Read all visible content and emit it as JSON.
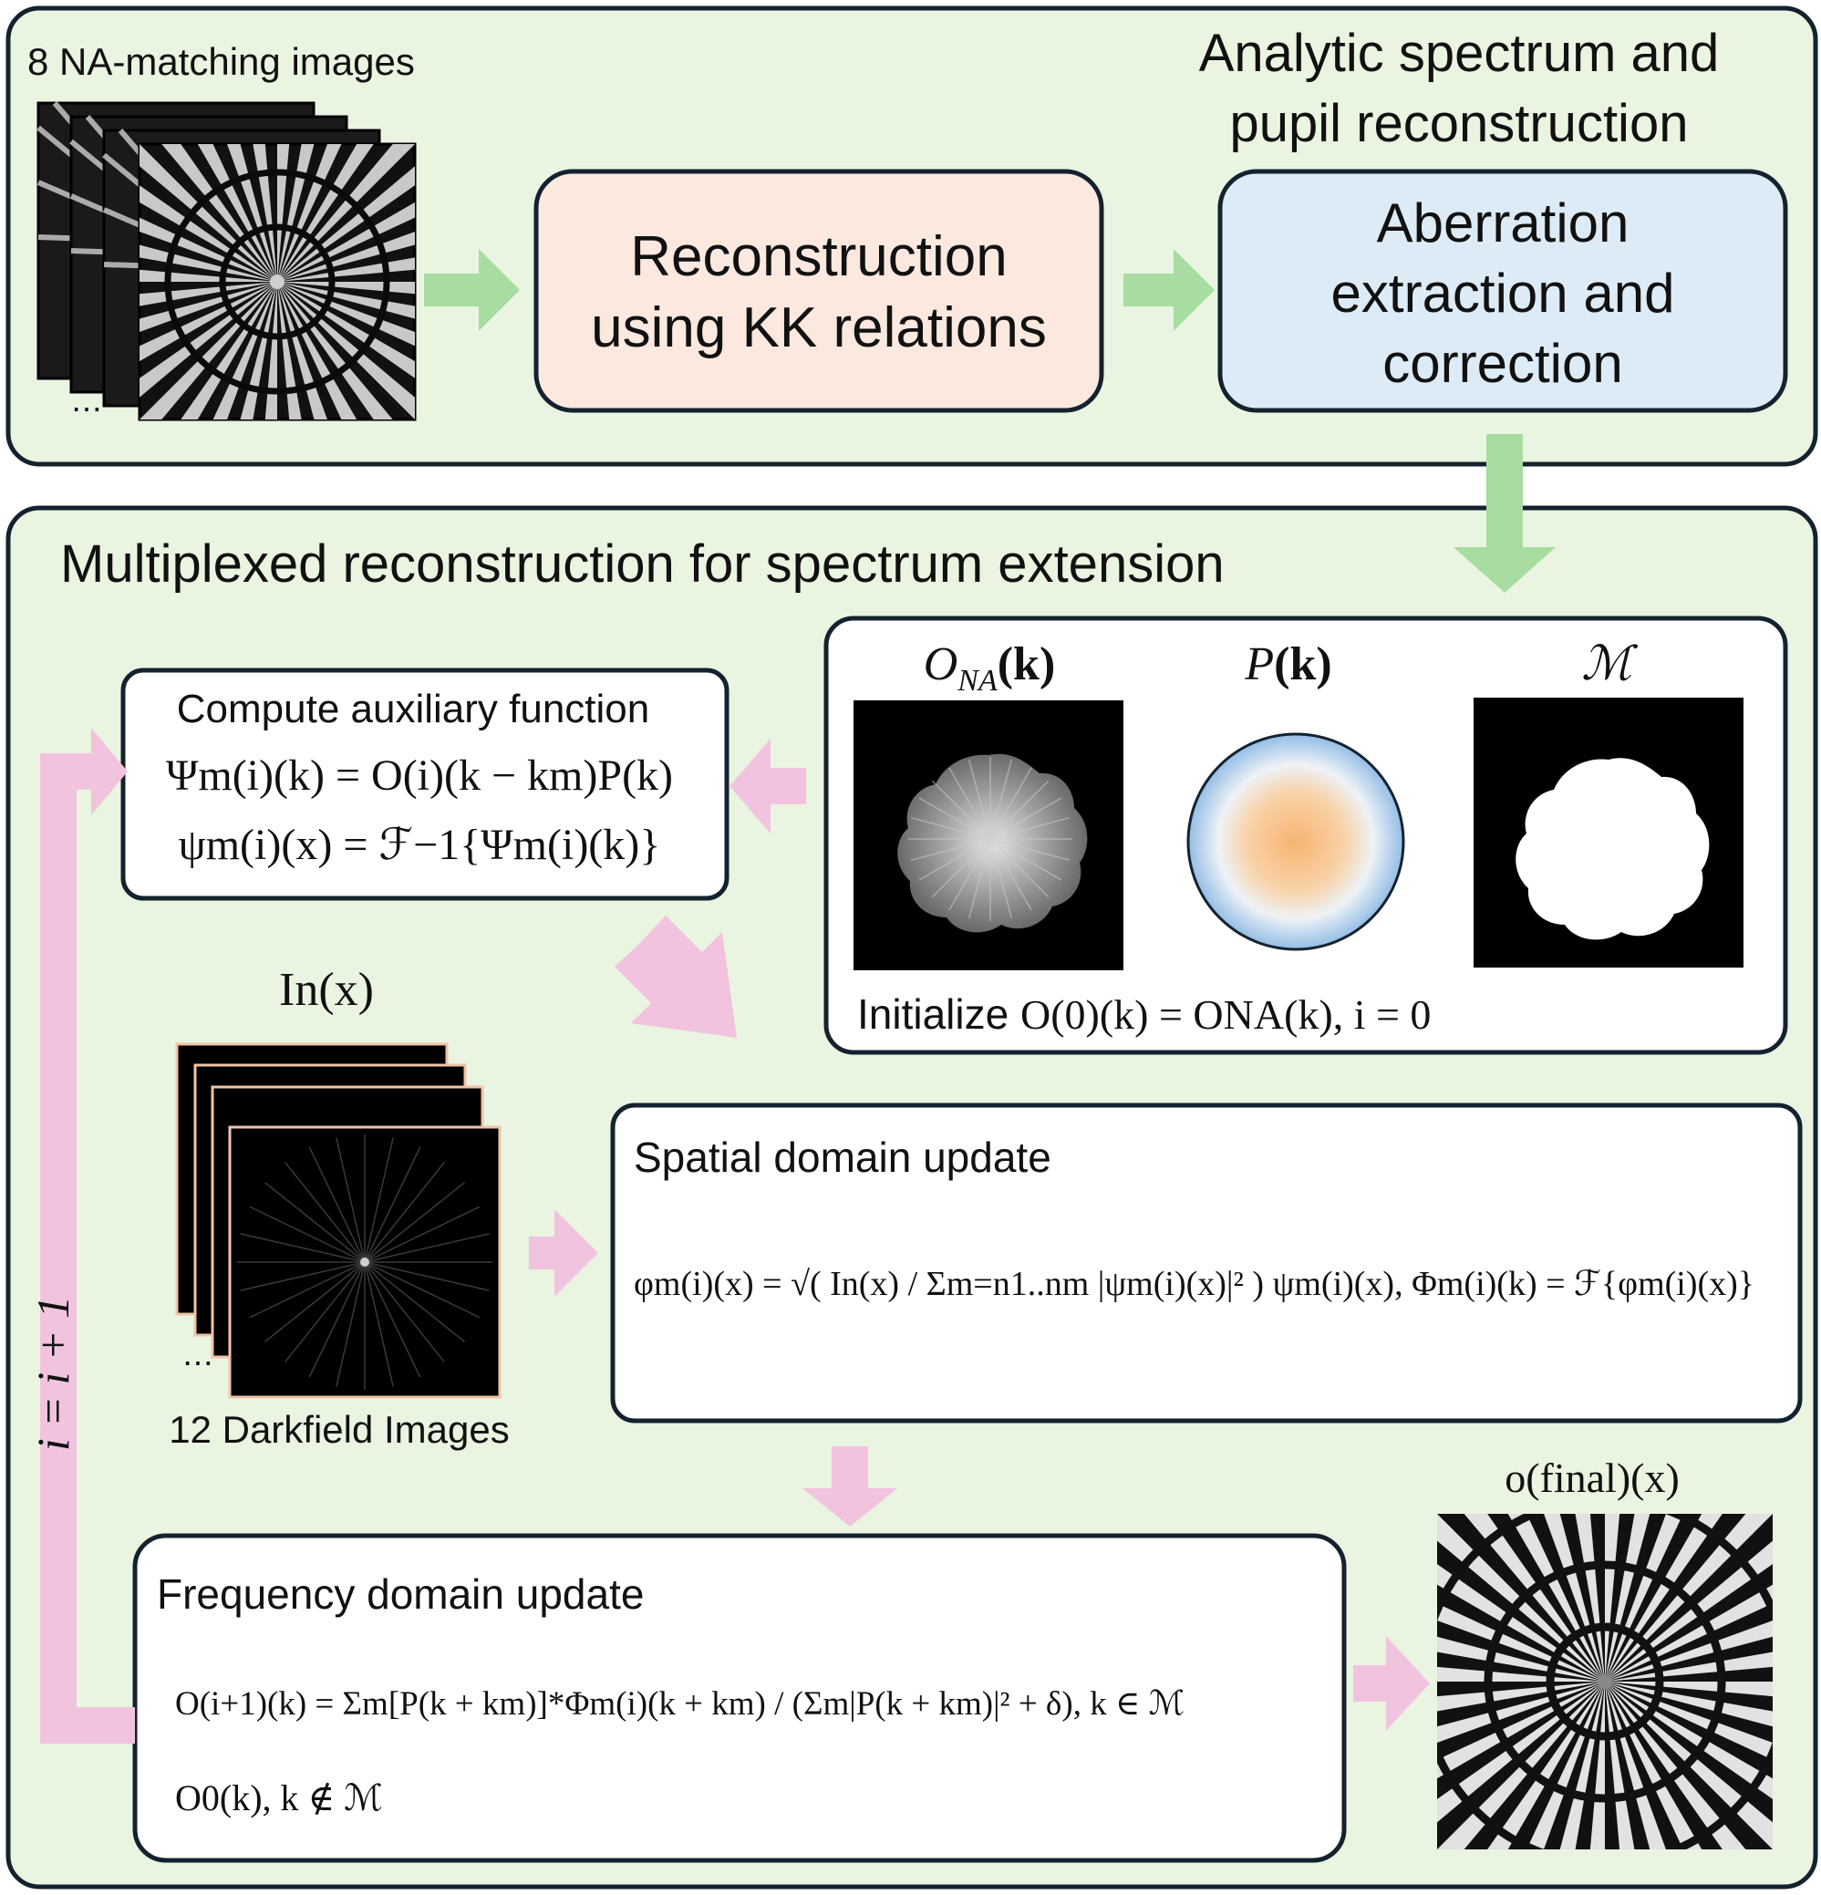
{
  "top_panel": {
    "stack_label": "8 NA-matching images",
    "stack_ellipsis": "⋯",
    "title_line1": "Analytic spectrum and",
    "title_line2": "pupil reconstruction",
    "kk_box_line1": "Reconstruction",
    "kk_box_line2": "using KK relations",
    "aberration_box_line1": "Aberration",
    "aberration_box_line2": "extraction and",
    "aberration_box_line3": "correction"
  },
  "bottom_panel": {
    "title": "Multiplexed reconstruction for spectrum extension",
    "init_box": {
      "label_ona": "O",
      "label_ona_sub": "NA",
      "label_ona_arg": "(k)",
      "label_p": "P",
      "label_p_arg": "(k)",
      "label_mask": "ℳ",
      "init_prefix": "Initialize ",
      "init_equation": "O(0)(k) = ONA(k), i = 0"
    },
    "aux_box": {
      "title": "Compute auxiliary function",
      "eq1": "Ψm(i)(k) = O(i)(k − km)P(k)",
      "eq2": "ψm(i)(x) = ℱ−1{Ψm(i)(k)}"
    },
    "darkfield": {
      "label": "In(x)",
      "caption": "12 Darkfield Images",
      "ellipsis": "⋯"
    },
    "spatial_box": {
      "title": "Spatial domain update",
      "equation": "φm(i)(x) = √( In(x) / Σm=n1..nm |ψm(i)(x)|² ) ψm(i)(x), Φm(i)(k) = ℱ{φm(i)(x)}"
    },
    "frequency_box": {
      "title": "Frequency domain update",
      "equation_case1": "O(i+1)(k) = Σm[P(k + km)]*Φm(i)(k + km) / (Σm|P(k + km)|² + δ),   k ∈ ℳ",
      "equation_case2": "O0(k),   k ∉ ℳ"
    },
    "loop_label": "i = i + 1",
    "final_label": "o(final)(x)"
  },
  "colors": {
    "panel_bg": "#e9f5e1",
    "kk_box_bg": "#fbe8df",
    "aberration_box_bg": "#dcebf6",
    "green_arrow": "#a8dca0",
    "pink_arrow": "#f2c3df",
    "pupil_center": "#f5b97a",
    "pupil_edge": "#9cc3e6"
  }
}
